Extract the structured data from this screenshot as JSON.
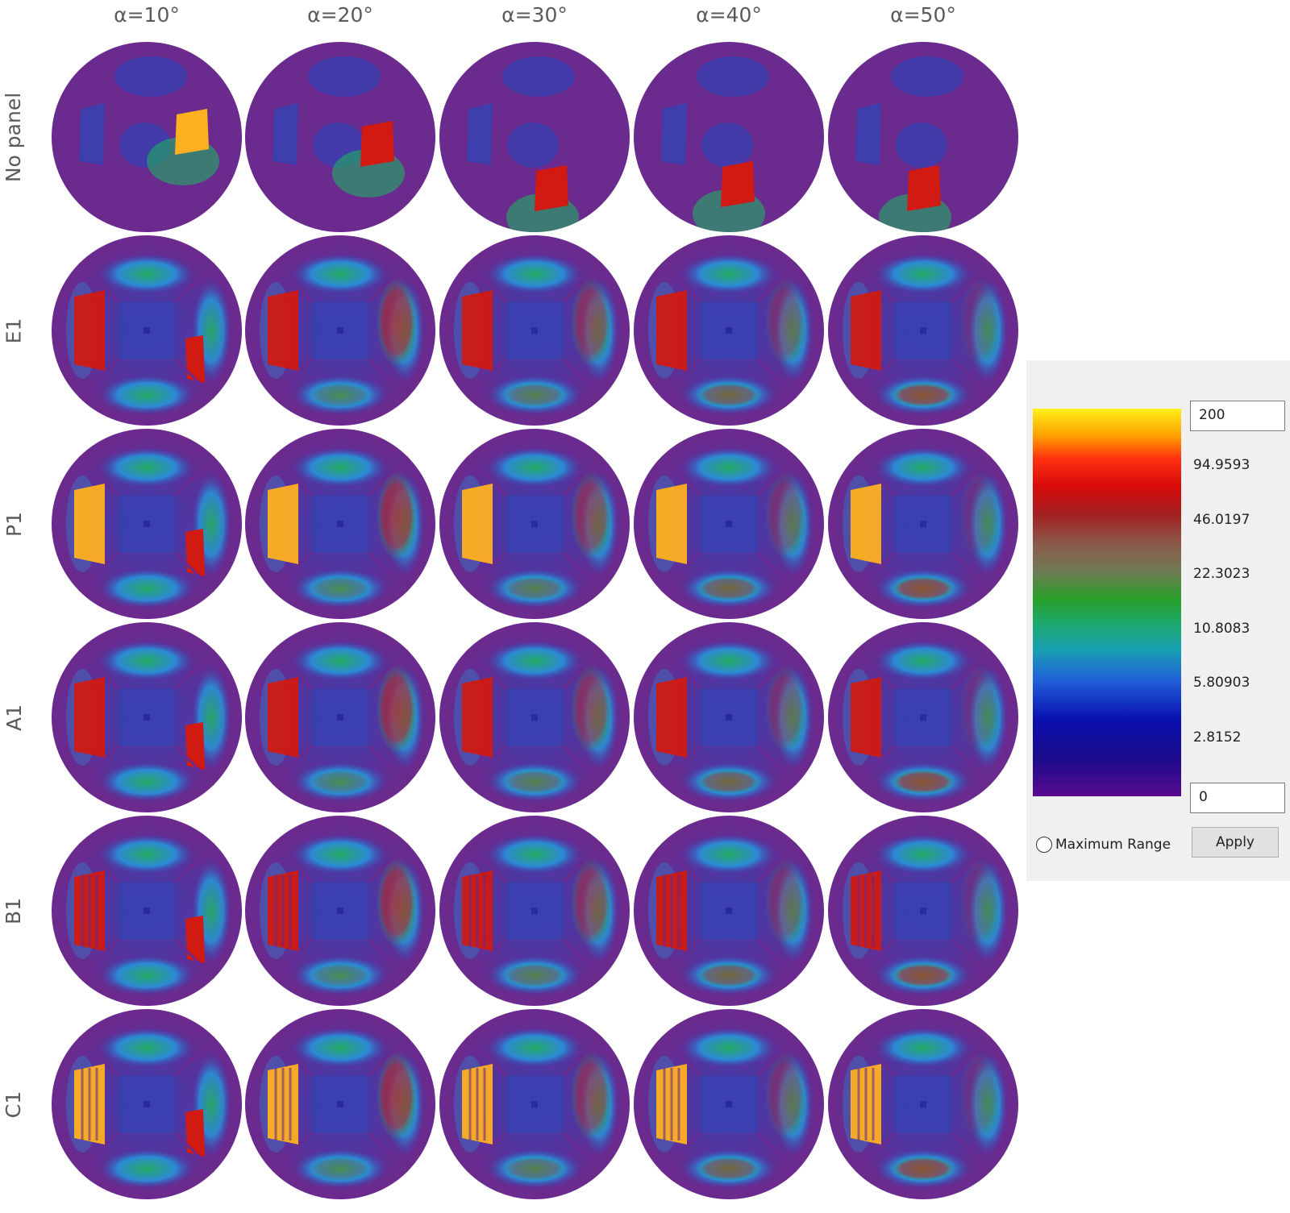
{
  "columns": [
    "α=10°",
    "α=20°",
    "α=30°",
    "α=40°",
    "α=50°"
  ],
  "rows": [
    "No panel",
    "E1",
    "P1",
    "A1",
    "B1",
    "C1"
  ],
  "legend": {
    "max_value": "200",
    "min_value": "0",
    "ticks": [
      "94.9593",
      "46.0197",
      "22.3023",
      "10.8083",
      "5.80903",
      "2.8152"
    ],
    "maximum_range_label": "Maximum Range",
    "maximum_range_checked": false,
    "apply_label": "Apply",
    "colormap": [
      "#fff21a",
      "#ffa000",
      "#d80a0a",
      "#8a5a4a",
      "#2aa02a",
      "#18a0b0",
      "#2060d8",
      "#1a0a8a",
      "#5a0a90"
    ]
  },
  "colors": {
    "background": "#6a2a8e",
    "low": "#3a40b0",
    "mid": "#2a8ed8",
    "green": "#20b060",
    "high": "#d01a12",
    "hot": "#ffb020"
  }
}
